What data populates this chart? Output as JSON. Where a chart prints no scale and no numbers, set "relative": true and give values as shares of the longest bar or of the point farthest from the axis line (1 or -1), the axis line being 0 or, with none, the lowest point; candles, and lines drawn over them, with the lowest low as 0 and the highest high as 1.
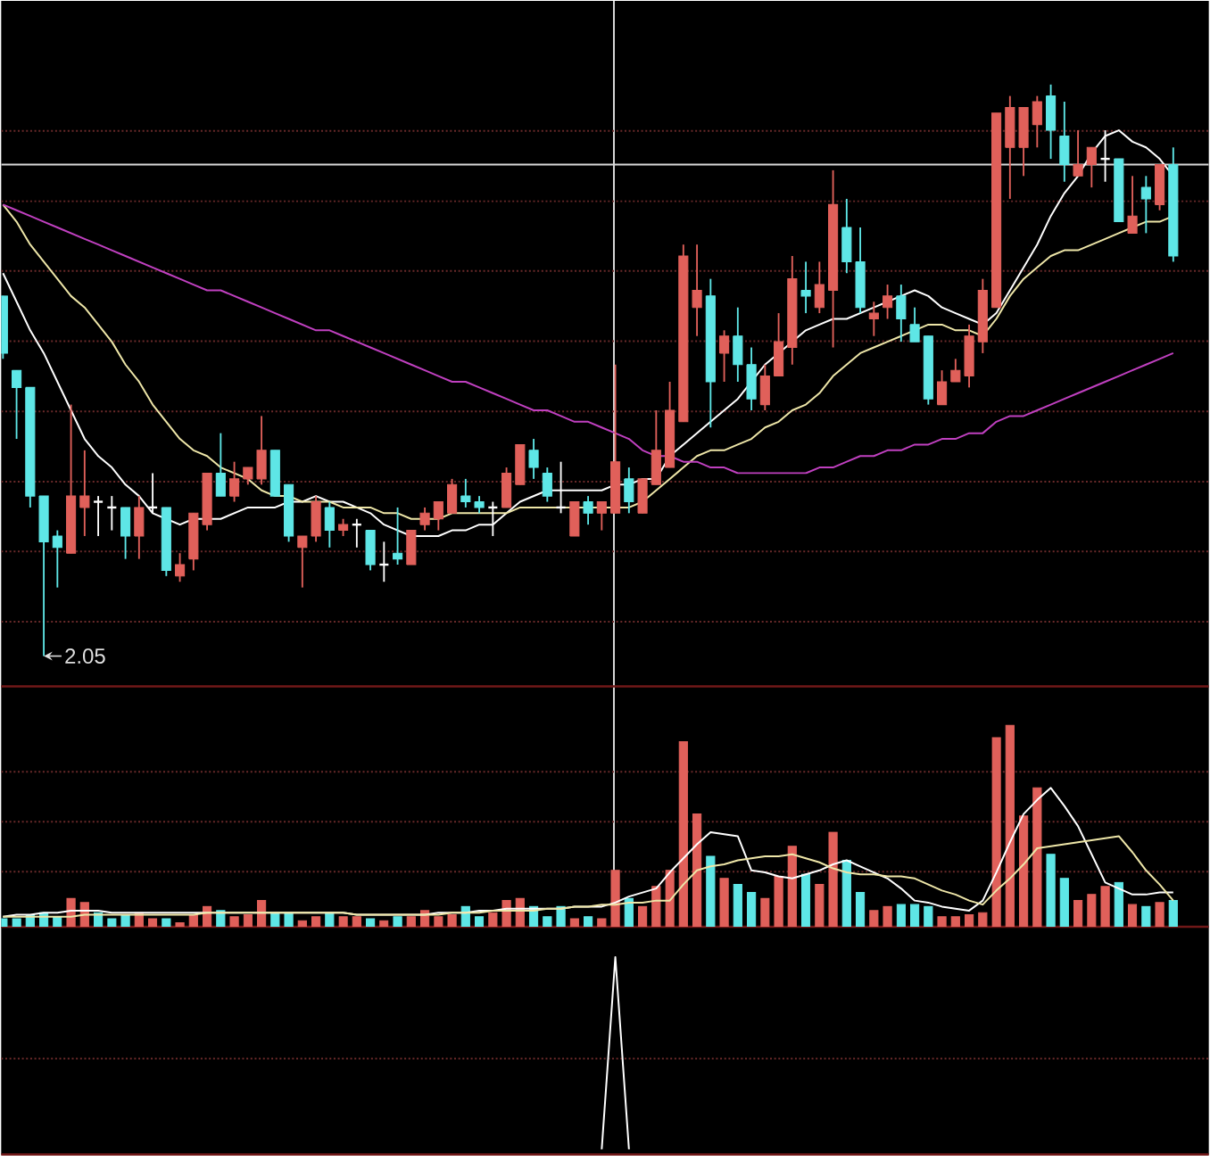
{
  "chart_data": [
    {
      "type": "candlestick",
      "relative": true,
      "categories": [
        null,
        null,
        null,
        null,
        null,
        null,
        null,
        null,
        null,
        null,
        null,
        null,
        null,
        null,
        null,
        null,
        null,
        null,
        null,
        null,
        null,
        null,
        null,
        null,
        null,
        null,
        null,
        null,
        null,
        null,
        null,
        null,
        null,
        null,
        null,
        null,
        null,
        null,
        null,
        null,
        null,
        null,
        null,
        null,
        null,
        null,
        null,
        null,
        null,
        null,
        null,
        null,
        null,
        null,
        null,
        null,
        null,
        null,
        null,
        null,
        null,
        null,
        null,
        null,
        null,
        null,
        null,
        null,
        null,
        null,
        null,
        null,
        null,
        null,
        null,
        null,
        null,
        null,
        null,
        null,
        null,
        null,
        null,
        null,
        null,
        null,
        null
      ],
      "ohlc": [
        [
          0.63,
          0.63,
          0.52,
          0.53
        ],
        [
          0.5,
          0.5,
          0.38,
          0.47
        ],
        [
          0.47,
          0.47,
          0.26,
          0.28
        ],
        [
          0.28,
          0.28,
          0,
          0.2
        ],
        [
          0.21,
          0.22,
          0.12,
          0.19
        ],
        [
          0.18,
          0.44,
          0.18,
          0.28
        ],
        [
          0.26,
          0.36,
          0.21,
          0.28
        ],
        [
          0.27,
          0.28,
          0.21,
          0.27
        ],
        [
          0.26,
          0.28,
          0.22,
          0.26
        ],
        [
          0.26,
          0.26,
          0.17,
          0.21
        ],
        [
          0.21,
          0.28,
          0.17,
          0.26
        ],
        [
          0.26,
          0.32,
          0.25,
          0.26
        ],
        [
          0.26,
          0.26,
          0.14,
          0.15
        ],
        [
          0.14,
          0.18,
          0.13,
          0.16
        ],
        [
          0.17,
          0.25,
          0.15,
          0.25
        ],
        [
          0.23,
          0.32,
          0.22,
          0.32
        ],
        [
          0.32,
          0.39,
          0.28,
          0.28
        ],
        [
          0.28,
          0.34,
          0.27,
          0.31
        ],
        [
          0.31,
          0.33,
          0.3,
          0.33
        ],
        [
          0.31,
          0.42,
          0.3,
          0.36
        ],
        [
          0.36,
          0.36,
          0.28,
          0.28
        ],
        [
          0.3,
          0.3,
          0.2,
          0.21
        ],
        [
          0.19,
          0.21,
          0.12,
          0.21
        ],
        [
          0.21,
          0.28,
          0.2,
          0.27
        ],
        [
          0.26,
          0.27,
          0.19,
          0.22
        ],
        [
          0.22,
          0.24,
          0.21,
          0.23
        ],
        [
          0.23,
          0.24,
          0.19,
          0.23
        ],
        [
          0.22,
          0.22,
          0.15,
          0.16
        ],
        [
          0.16,
          0.2,
          0.13,
          0.16
        ],
        [
          0.18,
          0.26,
          0.16,
          0.17
        ],
        [
          0.16,
          0.22,
          0.16,
          0.22
        ],
        [
          0.23,
          0.26,
          0.22,
          0.25
        ],
        [
          0.24,
          0.27,
          0.22,
          0.27
        ],
        [
          0.25,
          0.31,
          0.25,
          0.3
        ],
        [
          0.28,
          0.31,
          0.26,
          0.27
        ],
        [
          0.27,
          0.28,
          0.25,
          0.26
        ],
        [
          0.26,
          0.27,
          0.21,
          0.26
        ],
        [
          0.26,
          0.33,
          0.26,
          0.32
        ],
        [
          0.3,
          0.37,
          0.3,
          0.37
        ],
        [
          0.36,
          0.38,
          0.31,
          0.33
        ],
        [
          0.32,
          0.33,
          0.27,
          0.28
        ],
        [
          0.26,
          0.34,
          0.25,
          0.26
        ],
        [
          0.21,
          0.27,
          0.21,
          0.27
        ],
        [
          0.27,
          0.28,
          0.23,
          0.25
        ],
        [
          0.25,
          0.27,
          0.22,
          0.27
        ],
        [
          0.25,
          0.51,
          0.25,
          0.34
        ],
        [
          0.31,
          0.33,
          0.25,
          0.27
        ],
        [
          0.25,
          0.31,
          0.25,
          0.31
        ],
        [
          0.3,
          0.43,
          0.3,
          0.36
        ],
        [
          0.33,
          0.48,
          0.33,
          0.43
        ],
        [
          0.41,
          0.72,
          0.41,
          0.7
        ],
        [
          0.61,
          0.72,
          0.56,
          0.64
        ],
        [
          0.63,
          0.66,
          0.4,
          0.48
        ],
        [
          0.53,
          0.57,
          0.48,
          0.56
        ],
        [
          0.56,
          0.61,
          0.48,
          0.51
        ],
        [
          0.51,
          0.54,
          0.43,
          0.45
        ],
        [
          0.44,
          0.51,
          0.43,
          0.49
        ],
        [
          0.49,
          0.6,
          0.49,
          0.55
        ],
        [
          0.54,
          0.7,
          0.51,
          0.66
        ],
        [
          0.64,
          0.69,
          0.6,
          0.63
        ],
        [
          0.61,
          0.69,
          0.6,
          0.65
        ],
        [
          0.64,
          0.85,
          0.54,
          0.79
        ],
        [
          0.75,
          0.8,
          0.67,
          0.69
        ],
        [
          0.69,
          0.75,
          0.6,
          0.61
        ],
        [
          0.59,
          0.62,
          0.56,
          0.6
        ],
        [
          0.61,
          0.65,
          0.59,
          0.63
        ],
        [
          0.63,
          0.65,
          0.55,
          0.59
        ],
        [
          0.58,
          0.61,
          0.55,
          0.55
        ],
        [
          0.56,
          0.56,
          0.44,
          0.45
        ],
        [
          0.44,
          0.5,
          0.44,
          0.48
        ],
        [
          0.48,
          0.52,
          0.48,
          0.5
        ],
        [
          0.49,
          0.58,
          0.47,
          0.56
        ],
        [
          0.55,
          0.66,
          0.53,
          0.64
        ],
        [
          0.61,
          0.95,
          0.61,
          0.95
        ],
        [
          0.89,
          0.98,
          0.8,
          0.96
        ],
        [
          0.89,
          0.96,
          0.84,
          0.96
        ],
        [
          0.93,
          0.98,
          0.89,
          0.97
        ],
        [
          0.98,
          1.0,
          0.87,
          0.92
        ],
        [
          0.91,
          0.97,
          0.83,
          0.86
        ],
        [
          0.84,
          0.92,
          0.84,
          0.86
        ],
        [
          0.86,
          0.89,
          0.82,
          0.89
        ],
        [
          0.87,
          0.92,
          0.83,
          0.87
        ],
        [
          0.87,
          0.87,
          0.76,
          0.76
        ],
        [
          0.74,
          0.84,
          0.74,
          0.77
        ],
        [
          0.82,
          0.84,
          0.74,
          0.8
        ],
        [
          0.79,
          0.86,
          0.78,
          0.86
        ],
        [
          0.86,
          0.89,
          0.69,
          0.7
        ]
      ],
      "colors": [
        "#5ee6e6",
        "#5ee6e6",
        "#5ee6e6",
        "#5ee6e6",
        "#5ee6e6",
        "#e0605a",
        "#e0605a",
        "#ffffff",
        "#ffffff",
        "#5ee6e6",
        "#e0605a",
        "#ffffff",
        "#5ee6e6",
        "#e0605a",
        "#e0605a",
        "#e0605a",
        "#5ee6e6",
        "#e0605a",
        "#e0605a",
        "#e0605a",
        "#5ee6e6",
        "#5ee6e6",
        "#e0605a",
        "#e0605a",
        "#5ee6e6",
        "#e0605a",
        "#ffffff",
        "#5ee6e6",
        "#ffffff",
        "#5ee6e6",
        "#e0605a",
        "#e0605a",
        "#e0605a",
        "#e0605a",
        "#5ee6e6",
        "#5ee6e6",
        "#ffffff",
        "#e0605a",
        "#e0605a",
        "#5ee6e6",
        "#5ee6e6",
        "#ffffff",
        "#e0605a",
        "#5ee6e6",
        "#e0605a",
        "#e0605a",
        "#5ee6e6",
        "#e0605a",
        "#e0605a",
        "#e0605a",
        "#e0605a",
        "#e0605a",
        "#5ee6e6",
        "#e0605a",
        "#5ee6e6",
        "#5ee6e6",
        "#e0605a",
        "#e0605a",
        "#e0605a",
        "#5ee6e6",
        "#e0605a",
        "#e0605a",
        "#5ee6e6",
        "#5ee6e6",
        "#e0605a",
        "#e0605a",
        "#5ee6e6",
        "#5ee6e6",
        "#5ee6e6",
        "#e0605a",
        "#e0605a",
        "#e0605a",
        "#e0605a",
        "#e0605a",
        "#e0605a",
        "#e0605a",
        "#e0605a",
        "#5ee6e6",
        "#5ee6e6",
        "#e0605a",
        "#e0605a",
        "#ffffff",
        "#5ee6e6",
        "#e0605a",
        "#5ee6e6",
        "#e0605a",
        "#5ee6e6"
      ],
      "series": [
        {
          "type": "line",
          "color": "#ffffff",
          "values": [
            0.67,
            0.62,
            0.57,
            0.53,
            0.48,
            0.43,
            0.38,
            0.35,
            0.33,
            0.3,
            0.28,
            0.25,
            0.24,
            0.23,
            0.24,
            0.24,
            0.24,
            0.25,
            0.26,
            0.26,
            0.26,
            0.27,
            0.27,
            0.28,
            0.27,
            0.27,
            0.26,
            0.25,
            0.23,
            0.22,
            0.21,
            0.21,
            0.21,
            0.22,
            0.22,
            0.23,
            0.23,
            0.25,
            0.27,
            0.28,
            0.29,
            0.29,
            0.29,
            0.29,
            0.29,
            0.3,
            0.3,
            0.31,
            0.31,
            0.35,
            0.37,
            0.39,
            0.41,
            0.43,
            0.45,
            0.48,
            0.51,
            0.53,
            0.55,
            0.57,
            0.58,
            0.59,
            0.59,
            0.6,
            0.61,
            0.62,
            0.63,
            0.64,
            0.63,
            0.61,
            0.6,
            0.59,
            0.58,
            0.6,
            0.64,
            0.68,
            0.72,
            0.77,
            0.81,
            0.84,
            0.88,
            0.91,
            0.92,
            0.9,
            0.89,
            0.87,
            0.84
          ]
        },
        {
          "type": "line",
          "color": "#eee6a8",
          "values": [
            0.79,
            0.76,
            0.72,
            0.69,
            0.66,
            0.63,
            0.61,
            0.58,
            0.55,
            0.51,
            0.48,
            0.44,
            0.41,
            0.38,
            0.36,
            0.35,
            0.33,
            0.32,
            0.31,
            0.29,
            0.28,
            0.28,
            0.27,
            0.27,
            0.27,
            0.26,
            0.26,
            0.26,
            0.25,
            0.25,
            0.24,
            0.24,
            0.24,
            0.25,
            0.25,
            0.25,
            0.25,
            0.25,
            0.26,
            0.26,
            0.26,
            0.26,
            0.26,
            0.26,
            0.26,
            0.26,
            0.26,
            0.27,
            0.29,
            0.31,
            0.33,
            0.35,
            0.36,
            0.36,
            0.37,
            0.38,
            0.4,
            0.41,
            0.43,
            0.44,
            0.46,
            0.49,
            0.51,
            0.53,
            0.54,
            0.55,
            0.56,
            0.57,
            0.58,
            0.58,
            0.57,
            0.57,
            0.56,
            0.59,
            0.63,
            0.66,
            0.68,
            0.7,
            0.71,
            0.71,
            0.72,
            0.73,
            0.74,
            0.75,
            0.76,
            0.76,
            0.77
          ]
        },
        {
          "type": "line",
          "color": "#c040c0",
          "values": [
            0.79,
            0.78,
            0.77,
            0.76,
            0.75,
            0.74,
            0.73,
            0.72,
            0.71,
            0.7,
            0.69,
            0.68,
            0.67,
            0.66,
            0.65,
            0.64,
            0.64,
            0.63,
            0.62,
            0.61,
            0.6,
            0.59,
            0.58,
            0.57,
            0.57,
            0.56,
            0.55,
            0.54,
            0.53,
            0.52,
            0.51,
            0.5,
            0.49,
            0.48,
            0.48,
            0.47,
            0.46,
            0.45,
            0.44,
            0.43,
            0.43,
            0.42,
            0.41,
            0.41,
            0.4,
            0.39,
            0.38,
            0.36,
            0.35,
            0.35,
            0.34,
            0.34,
            0.33,
            0.33,
            0.32,
            0.32,
            0.32,
            0.32,
            0.32,
            0.32,
            0.33,
            0.33,
            0.34,
            0.35,
            0.35,
            0.36,
            0.36,
            0.37,
            0.37,
            0.38,
            0.38,
            0.39,
            0.39,
            0.41,
            0.42,
            0.42,
            0.43,
            0.44,
            0.45,
            0.46,
            0.47,
            0.48,
            0.49,
            0.5,
            0.51,
            0.52,
            0.53
          ]
        }
      ],
      "annotations": [
        "2.05"
      ],
      "ref_lines": [
        {
          "axis": "y",
          "value": 0.86,
          "color": "#d8d8d8"
        },
        {
          "axis": "y",
          "value": 0.919,
          "color": "#6a2a2a",
          "line_style": "dotted"
        },
        {
          "axis": "y",
          "value": 0.796,
          "color": "#6a2a2a",
          "line_style": "dotted"
        },
        {
          "axis": "y",
          "value": 0.674,
          "color": "#6a2a2a",
          "line_style": "dotted"
        },
        {
          "axis": "y",
          "value": 0.551,
          "color": "#6a2a2a",
          "line_style": "dotted"
        },
        {
          "axis": "y",
          "value": 0.428,
          "color": "#6a2a2a",
          "line_style": "dotted"
        },
        {
          "axis": "y",
          "value": 0.305,
          "color": "#6a2a2a",
          "line_style": "dotted"
        },
        {
          "axis": "y",
          "value": 0.183,
          "color": "#6a2a2a",
          "line_style": "dotted"
        },
        {
          "axis": "y",
          "value": 0.06,
          "color": "#6a2a2a",
          "line_style": "dotted"
        }
      ]
    },
    {
      "type": "bar",
      "relative": true,
      "ref_lines": [
        {
          "axis": "y",
          "value": 0.77,
          "color": "#6a2a2a",
          "line_style": "dotted"
        },
        {
          "axis": "y",
          "value": 0.522,
          "color": "#6a2a2a",
          "line_style": "dotted"
        },
        {
          "axis": "y",
          "value": 0.274,
          "color": "#6a2a2a",
          "line_style": "dotted"
        }
      ],
      "categories": [
        null,
        null,
        null,
        null,
        null,
        null,
        null,
        null,
        null,
        null,
        null,
        null,
        null,
        null,
        null,
        null,
        null,
        null,
        null,
        null,
        null,
        null,
        null,
        null,
        null,
        null,
        null,
        null,
        null,
        null,
        null,
        null,
        null,
        null,
        null,
        null,
        null,
        null,
        null,
        null,
        null,
        null,
        null,
        null,
        null,
        null,
        null,
        null,
        null,
        null,
        null,
        null,
        null,
        null,
        null,
        null,
        null,
        null,
        null,
        null,
        null,
        null,
        null,
        null,
        null,
        null,
        null,
        null,
        null,
        null,
        null,
        null,
        null,
        null,
        null,
        null,
        null,
        null,
        null,
        null,
        null,
        null,
        null,
        null,
        null,
        null,
        null
      ],
      "series": [
        {
          "values": [
            0.04,
            0.04,
            0.06,
            0.07,
            0.05,
            0.14,
            0.12,
            0.07,
            0.04,
            0.06,
            0.07,
            0.04,
            0.04,
            0.02,
            0.06,
            0.1,
            0.08,
            0.05,
            0.06,
            0.13,
            0.07,
            0.07,
            0.03,
            0.05,
            0.07,
            0.05,
            0.05,
            0.04,
            0.03,
            0.05,
            0.05,
            0.08,
            0.05,
            0.06,
            0.1,
            0.05,
            0.07,
            0.13,
            0.14,
            0.1,
            0.05,
            0.1,
            0.04,
            0.05,
            0.04,
            0.28,
            0.14,
            0.1,
            0.2,
            0.28,
            0.92,
            0.56,
            0.35,
            0.24,
            0.21,
            0.17,
            0.14,
            0.25,
            0.4,
            0.26,
            0.21,
            0.47,
            0.33,
            0.17,
            0.08,
            0.1,
            0.11,
            0.11,
            0.1,
            0.05,
            0.05,
            0.06,
            0.07,
            0.94,
            1.0,
            0.55,
            0.69,
            0.36,
            0.24,
            0.13,
            0.16,
            0.2,
            0.22,
            0.11,
            0.1,
            0.12,
            0.13
          ],
          "colors": [
            "#5ee6e6",
            "#5ee6e6",
            "#5ee6e6",
            "#5ee6e6",
            "#5ee6e6",
            "#e0605a",
            "#e0605a",
            "#5ee6e6",
            "#5ee6e6",
            "#5ee6e6",
            "#e0605a",
            "#e0605a",
            "#5ee6e6",
            "#e0605a",
            "#e0605a",
            "#e0605a",
            "#5ee6e6",
            "#e0605a",
            "#e0605a",
            "#e0605a",
            "#5ee6e6",
            "#5ee6e6",
            "#e0605a",
            "#e0605a",
            "#5ee6e6",
            "#e0605a",
            "#e0605a",
            "#5ee6e6",
            "#e0605a",
            "#5ee6e6",
            "#e0605a",
            "#e0605a",
            "#e0605a",
            "#e0605a",
            "#5ee6e6",
            "#5ee6e6",
            "#e0605a",
            "#e0605a",
            "#e0605a",
            "#5ee6e6",
            "#5ee6e6",
            "#5ee6e6",
            "#e0605a",
            "#5ee6e6",
            "#e0605a",
            "#e0605a",
            "#5ee6e6",
            "#e0605a",
            "#e0605a",
            "#e0605a",
            "#e0605a",
            "#e0605a",
            "#5ee6e6",
            "#e0605a",
            "#5ee6e6",
            "#5ee6e6",
            "#e0605a",
            "#e0605a",
            "#e0605a",
            "#5ee6e6",
            "#e0605a",
            "#e0605a",
            "#5ee6e6",
            "#5ee6e6",
            "#e0605a",
            "#e0605a",
            "#5ee6e6",
            "#5ee6e6",
            "#5ee6e6",
            "#e0605a",
            "#e0605a",
            "#e0605a",
            "#e0605a",
            "#e0605a",
            "#e0605a",
            "#e0605a",
            "#e0605a",
            "#5ee6e6",
            "#5ee6e6",
            "#e0605a",
            "#e0605a",
            "#e0605a",
            "#5ee6e6",
            "#e0605a",
            "#5ee6e6",
            "#e0605a",
            "#5ee6e6"
          ]
        },
        {
          "type": "line",
          "color": "#ffffff",
          "values": [
            0.05,
            0.06,
            0.06,
            0.07,
            0.07,
            0.08,
            0.08,
            0.08,
            0.07,
            0.07,
            0.07,
            0.07,
            0.07,
            0.07,
            0.07,
            0.07,
            0.07,
            0.07,
            0.07,
            0.07,
            0.07,
            0.07,
            0.07,
            0.07,
            0.07,
            0.07,
            0.06,
            0.06,
            0.06,
            0.06,
            0.06,
            0.06,
            0.07,
            0.07,
            0.07,
            0.08,
            0.08,
            0.09,
            0.09,
            0.09,
            0.09,
            0.09,
            0.1,
            0.1,
            0.1,
            0.12,
            0.15,
            0.17,
            0.19,
            0.27,
            0.34,
            0.41,
            0.47,
            0.46,
            0.45,
            0.28,
            0.27,
            0.25,
            0.24,
            0.26,
            0.28,
            0.31,
            0.33,
            0.3,
            0.27,
            0.24,
            0.19,
            0.13,
            0.12,
            0.1,
            0.09,
            0.08,
            0.13,
            0.27,
            0.42,
            0.56,
            0.63,
            0.69,
            0.6,
            0.5,
            0.36,
            0.22,
            0.19,
            0.16,
            0.16,
            0.17,
            0.17
          ]
        },
        {
          "type": "line",
          "color": "#eee6a8",
          "values": [
            0.05,
            0.05,
            0.05,
            0.05,
            0.05,
            0.05,
            0.06,
            0.06,
            0.06,
            0.06,
            0.06,
            0.06,
            0.06,
            0.06,
            0.06,
            0.07,
            0.07,
            0.07,
            0.07,
            0.07,
            0.07,
            0.07,
            0.07,
            0.07,
            0.07,
            0.07,
            0.06,
            0.06,
            0.06,
            0.06,
            0.06,
            0.06,
            0.06,
            0.07,
            0.07,
            0.07,
            0.08,
            0.08,
            0.08,
            0.08,
            0.09,
            0.09,
            0.1,
            0.1,
            0.11,
            0.11,
            0.12,
            0.12,
            0.13,
            0.13,
            0.21,
            0.28,
            0.3,
            0.31,
            0.33,
            0.34,
            0.35,
            0.35,
            0.36,
            0.34,
            0.32,
            0.29,
            0.27,
            0.26,
            0.26,
            0.25,
            0.25,
            0.24,
            0.21,
            0.18,
            0.16,
            0.13,
            0.11,
            0.18,
            0.24,
            0.31,
            0.39,
            0.4,
            0.41,
            0.42,
            0.43,
            0.44,
            0.45,
            0.37,
            0.28,
            0.21,
            0.13
          ]
        }
      ]
    },
    {
      "type": "line",
      "relative": true,
      "ref_lines": [
        {
          "axis": "y",
          "value": 0.472,
          "color": "#6a2a2a",
          "line_style": "dotted"
        }
      ],
      "categories": [
        null,
        null,
        null,
        null,
        null,
        null,
        null,
        null,
        null,
        null,
        null,
        null,
        null,
        null,
        null,
        null,
        null,
        null,
        null,
        null,
        null,
        null,
        null,
        null,
        null,
        null,
        null,
        null,
        null,
        null,
        null,
        null,
        null,
        null,
        null,
        null,
        null,
        null,
        null,
        null,
        null,
        null,
        null,
        null,
        null,
        null,
        null,
        null,
        null,
        null,
        null,
        null,
        null,
        null,
        null,
        null,
        null,
        null,
        null,
        null,
        null,
        null,
        null,
        null,
        null,
        null,
        null,
        null,
        null,
        null,
        null,
        null,
        null,
        null,
        null,
        null,
        null,
        null,
        null,
        null,
        null,
        null,
        null,
        null,
        null,
        null,
        null
      ],
      "series": [
        {
          "color": "#ffffff",
          "values": [
            null,
            null,
            null,
            null,
            null,
            null,
            null,
            null,
            null,
            null,
            null,
            null,
            null,
            null,
            null,
            null,
            null,
            null,
            null,
            null,
            null,
            null,
            null,
            null,
            null,
            null,
            null,
            null,
            null,
            null,
            null,
            null,
            null,
            null,
            null,
            null,
            null,
            null,
            null,
            null,
            null,
            null,
            null,
            null,
            0,
            1,
            0,
            null,
            null,
            null,
            null,
            null,
            null,
            null,
            null,
            null,
            null,
            null,
            null,
            null,
            null,
            null,
            null,
            null,
            null,
            null,
            null,
            null,
            null,
            null,
            null,
            null,
            null,
            null,
            null,
            null,
            null,
            null,
            null,
            null,
            null,
            null,
            null,
            null,
            null,
            null,
            null
          ]
        }
      ]
    }
  ]
}
